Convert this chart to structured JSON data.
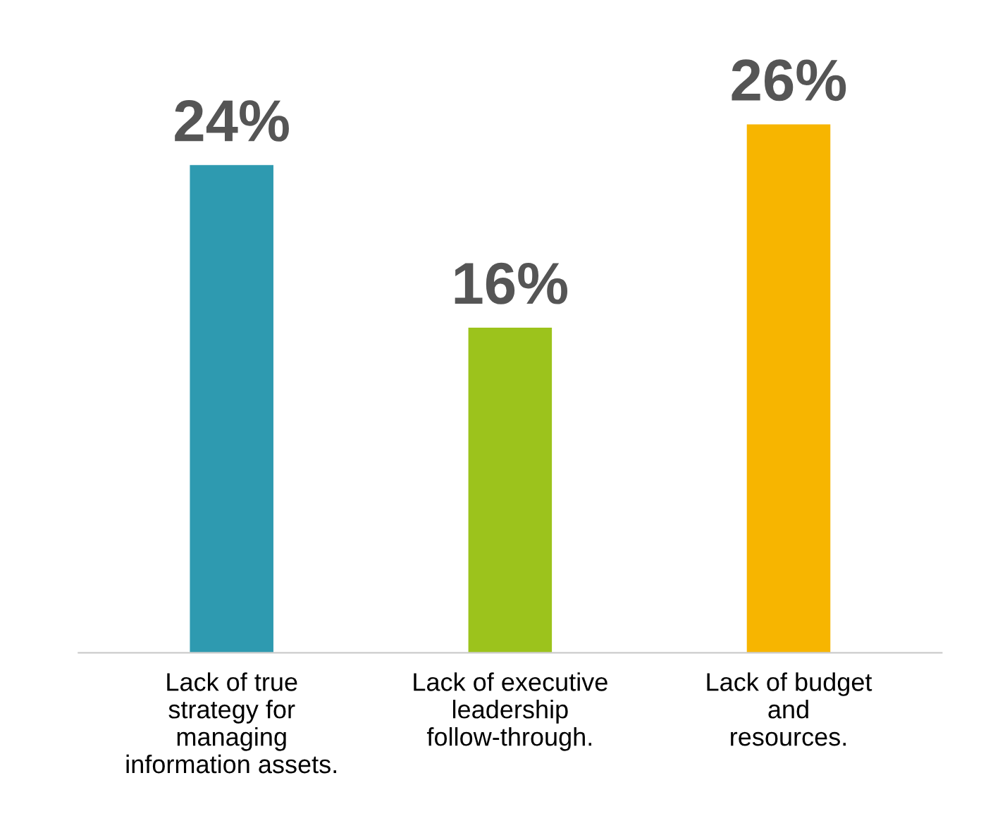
{
  "chart_data": {
    "type": "bar",
    "categories": [
      "Lack of true\nstrategy for\nmanaging\ninformation assets.",
      "Lack of executive\nleadership\nfollow-through.",
      "Lack of budget\nand\nresources."
    ],
    "values": [
      24,
      16,
      26
    ],
    "colors": [
      "#2e9ab0",
      "#9cc31c",
      "#f7b500"
    ],
    "value_labels": [
      "24%",
      "16%",
      "26%"
    ],
    "grid": false,
    "legend": false
  }
}
